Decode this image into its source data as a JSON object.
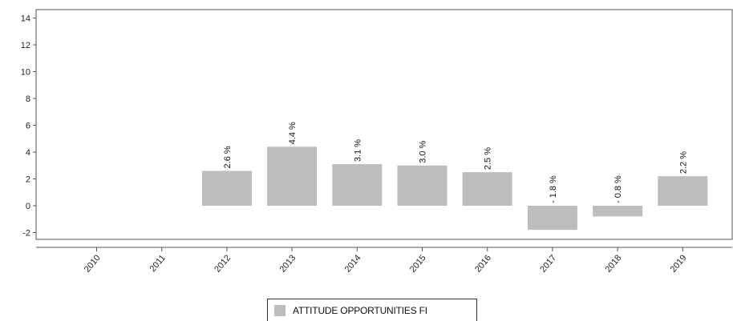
{
  "chart_data": {
    "type": "bar",
    "categories": [
      "2010",
      "2011",
      "2012",
      "2013",
      "2014",
      "2015",
      "2016",
      "2017",
      "2018",
      "2019"
    ],
    "series": [
      {
        "name": "ATTITUDE OPPORTUNITIES FI",
        "values": [
          null,
          null,
          2.6,
          4.4,
          3.1,
          3.0,
          2.5,
          -1.8,
          -0.8,
          2.2
        ],
        "labels": [
          "",
          "",
          "2.6 %",
          "4.4 %",
          "3.1 %",
          "3.0 %",
          "2.5 %",
          "- 1.8 %",
          "- 0.8 %",
          "2.2 %"
        ],
        "color": "#bdbdbd"
      }
    ],
    "ylim": [
      -2.5,
      14.5
    ],
    "yticks": [
      -2,
      0,
      2,
      4,
      6,
      8,
      10,
      12,
      14
    ],
    "ytick_labels": [
      "-2",
      "0",
      "2",
      "4",
      "6",
      "8",
      "10",
      "12",
      "14"
    ],
    "legend_position": "bottom-center",
    "grid": false
  }
}
